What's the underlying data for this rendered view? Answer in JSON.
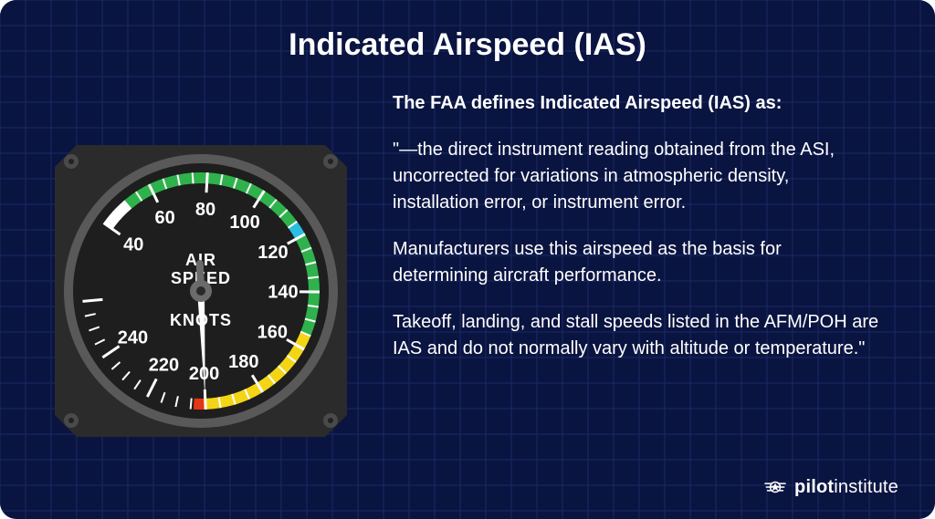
{
  "card": {
    "title": "Indicated Airspeed (IAS)",
    "background_color": "#0a1440",
    "grid_color": "#1a2a66",
    "grid_step": 28,
    "border_radius": 18
  },
  "text": {
    "lead": "The FAA defines Indicated Airspeed (IAS) as:",
    "para1": "\"—the direct instrument reading obtained from the ASI, uncorrected for variations in atmospheric density, installation error, or instrument error.",
    "para2": "Manufacturers use this airspeed as the basis for determining aircraft performance.",
    "para3": "Takeoff, landing, and stall speeds listed in the AFM/POH are IAS and do not normally vary with altitude or temperature.\"",
    "color": "#ffffff",
    "lead_fontsize": 20,
    "body_fontsize": 20
  },
  "brand": {
    "bold": "pilot",
    "light": "institute",
    "color": "#ffffff",
    "icon_stroke": "#ffffff"
  },
  "gauge": {
    "type": "airspeed-indicator",
    "size": 320,
    "bezel_outer_color": "#2b2b2b",
    "bezel_screw_color": "#4a4a4a",
    "bezel_ring_color": "#595959",
    "face_color": "#1e1e1e",
    "tick_color": "#ffffff",
    "label_color": "#ffffff",
    "label_fontsize": 20,
    "center_label_top": "AIR",
    "center_label_mid": "SPEED",
    "center_label_bottom": "KNOTS",
    "center_label_fontsize": 18,
    "needle_value": 200,
    "needle_color": "#ffffff",
    "needle_hub_color": "#6b6b6b",
    "scale": {
      "min": 40,
      "max": 260,
      "start_deg": -55,
      "end_deg": 265,
      "major_step": 20,
      "minor_step": 5,
      "labels": [
        40,
        60,
        80,
        100,
        120,
        140,
        160,
        180,
        200,
        220,
        240
      ]
    },
    "arcs": [
      {
        "from": 40,
        "to": 50,
        "color": "#ffffff",
        "width": 12,
        "radius": 124
      },
      {
        "from": 50,
        "to": 115,
        "color": "#2fb24c",
        "width": 12,
        "radius": 124
      },
      {
        "from": 115,
        "to": 120,
        "color": "#2abfe0",
        "width": 12,
        "radius": 124
      },
      {
        "from": 120,
        "to": 155,
        "color": "#2fb24c",
        "width": 12,
        "radius": 124
      },
      {
        "from": 155,
        "to": 200,
        "color": "#f4d515",
        "width": 12,
        "radius": 124
      },
      {
        "from": 200,
        "to": 204,
        "color": "#e53517",
        "width": 12,
        "radius": 124
      }
    ]
  }
}
